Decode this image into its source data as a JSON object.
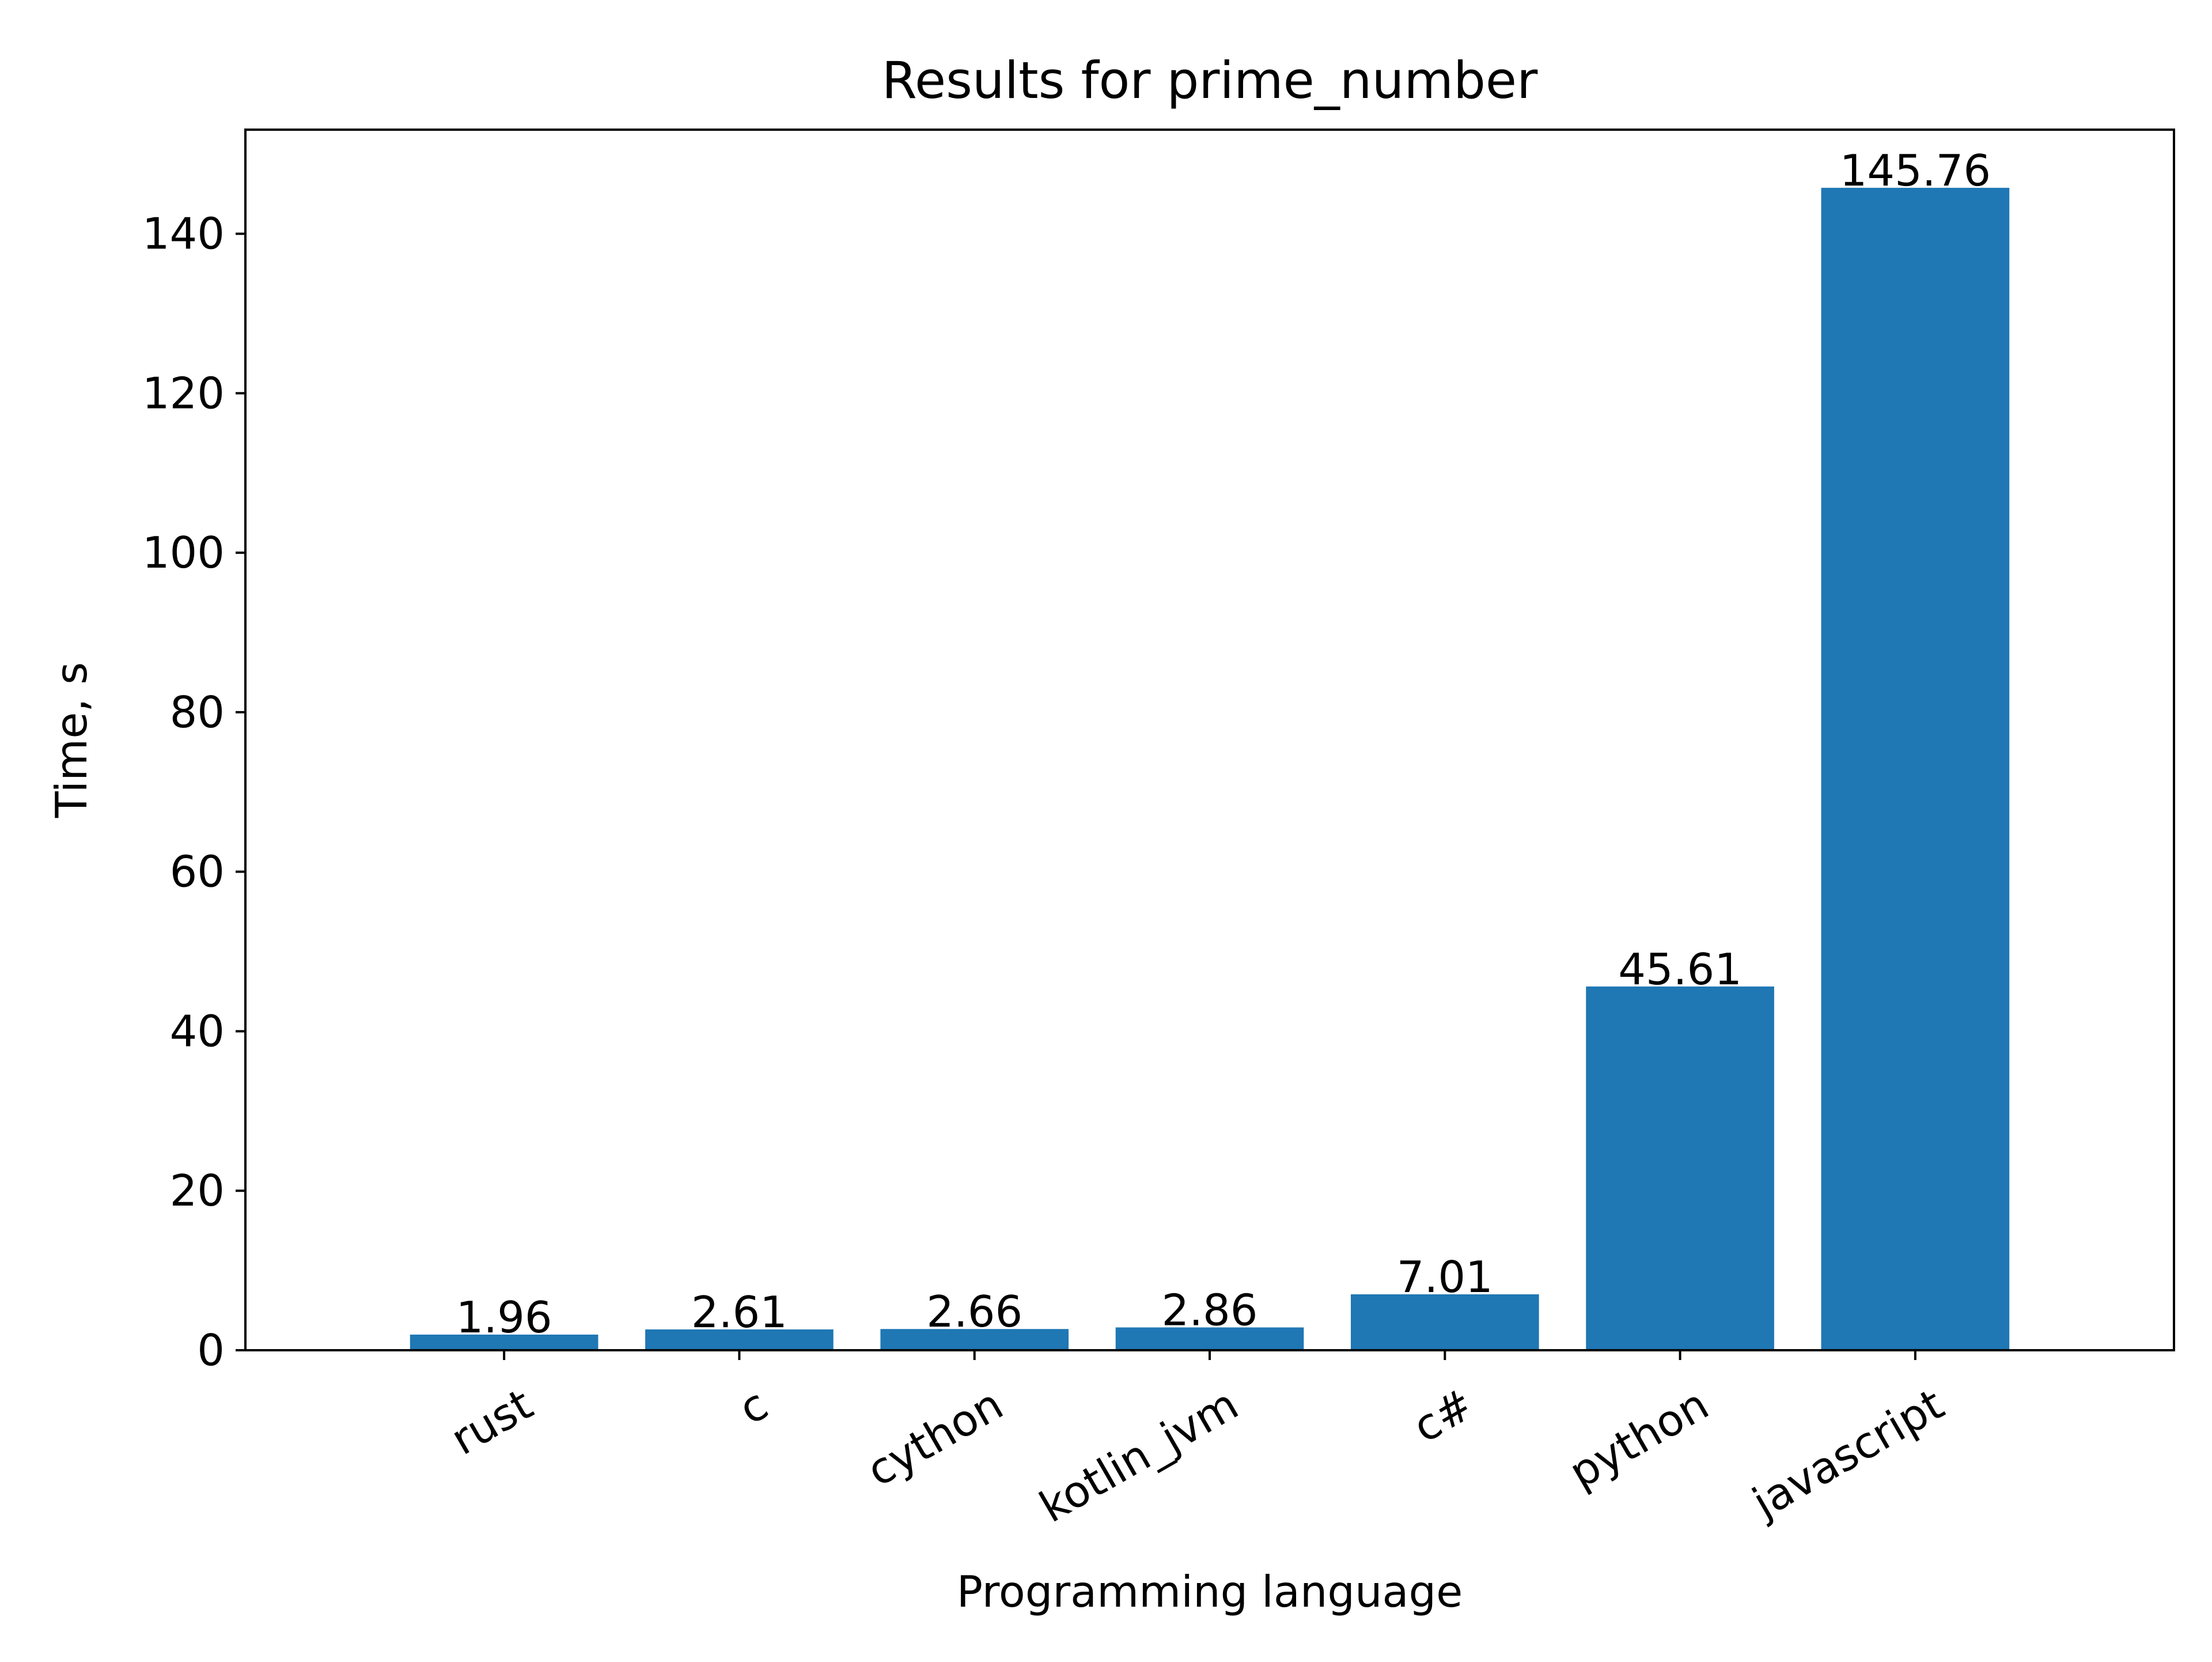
{
  "chart_data": {
    "type": "bar",
    "title": "Results for prime_number",
    "xlabel": "Programming language",
    "ylabel": "Time, s",
    "categories": [
      "rust",
      "c",
      "cython",
      "kotlin_jvm",
      "c#",
      "python",
      "javascript"
    ],
    "values": [
      1.96,
      2.61,
      2.66,
      2.86,
      7.01,
      45.61,
      145.76
    ],
    "data_labels": [
      "1.96",
      "2.61",
      "2.66",
      "2.86",
      "7.01",
      "45.61",
      "145.76"
    ],
    "ylim": [
      0,
      153.05
    ],
    "yticks": [
      0,
      20,
      40,
      60,
      80,
      100,
      120,
      140
    ],
    "ytick_labels": [
      "0",
      "20",
      "40",
      "60",
      "80",
      "100",
      "120",
      "140"
    ],
    "bar_color": "#1f77b4",
    "grid": false,
    "legend": "none"
  }
}
